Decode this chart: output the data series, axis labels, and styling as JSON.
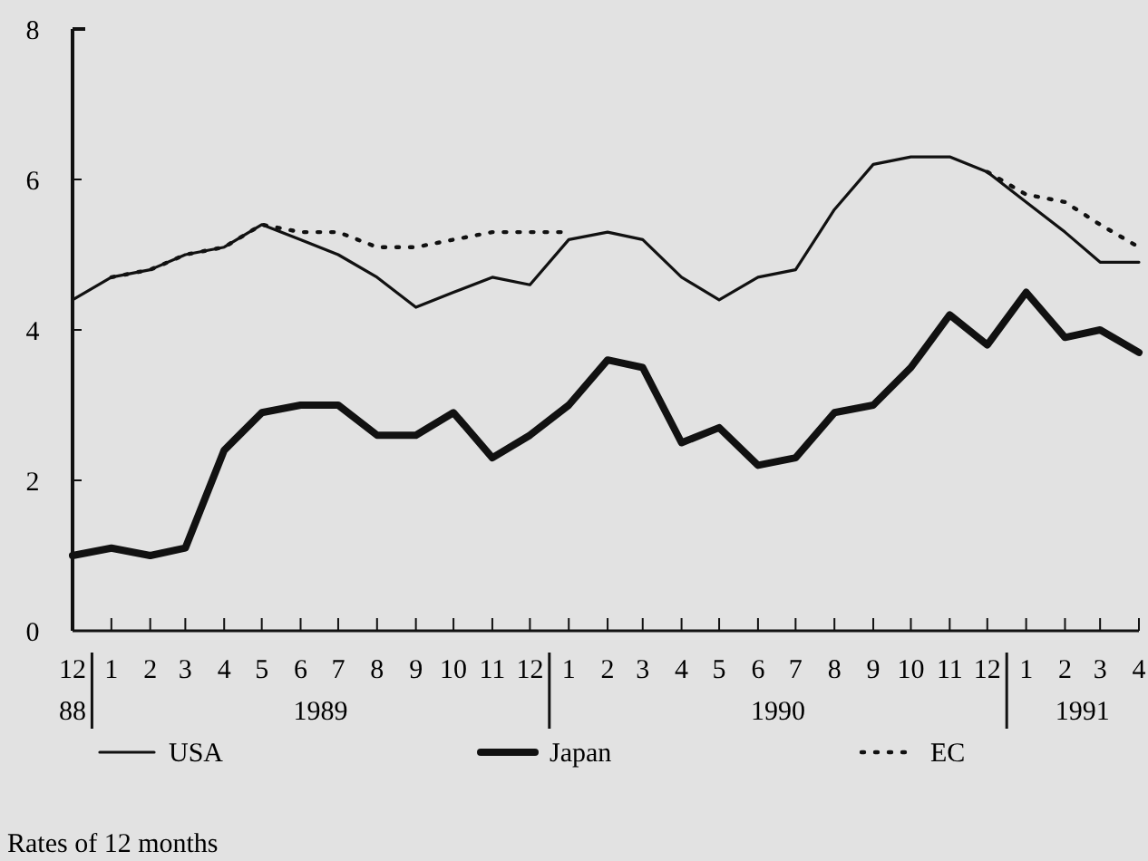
{
  "chart_data": {
    "type": "line",
    "x": [
      "1988-12",
      "1989-01",
      "1989-02",
      "1989-03",
      "1989-04",
      "1989-05",
      "1989-06",
      "1989-07",
      "1989-08",
      "1989-09",
      "1989-10",
      "1989-11",
      "1989-12",
      "1990-01",
      "1990-02",
      "1990-03",
      "1990-04",
      "1990-05",
      "1990-06",
      "1990-07",
      "1990-08",
      "1990-09",
      "1990-10",
      "1990-11",
      "1990-12",
      "1991-01",
      "1991-02",
      "1991-03",
      "1991-04"
    ],
    "series": [
      {
        "name": "USA",
        "color": "#111111",
        "line_style": "solid",
        "values": [
          4.4,
          4.7,
          4.8,
          5.0,
          5.1,
          5.4,
          5.2,
          5.0,
          4.7,
          4.3,
          4.5,
          4.7,
          4.6,
          5.2,
          5.3,
          5.2,
          4.7,
          4.4,
          4.7,
          4.8,
          5.6,
          6.2,
          6.3,
          6.3,
          6.1,
          5.7,
          5.3,
          4.9,
          4.9
        ]
      },
      {
        "name": "Japan",
        "color": "#111111",
        "line_style": "solid",
        "values": [
          1.0,
          1.1,
          1.0,
          1.1,
          2.4,
          2.9,
          3.0,
          3.0,
          2.6,
          2.6,
          2.9,
          2.3,
          2.6,
          3.0,
          3.6,
          3.5,
          2.5,
          2.7,
          2.2,
          2.3,
          2.9,
          3.0,
          3.5,
          4.2,
          3.8,
          4.5,
          3.9,
          4.0,
          3.7
        ]
      },
      {
        "name": "EC",
        "color": "#111111",
        "line_style": "dotted",
        "values": [
          null,
          4.7,
          4.8,
          5.0,
          5.1,
          5.4,
          5.3,
          5.3,
          5.1,
          5.1,
          5.2,
          5.3,
          5.3,
          5.3,
          null,
          null,
          null,
          null,
          null,
          null,
          null,
          null,
          null,
          null,
          6.1,
          5.8,
          5.7,
          5.4,
          5.1
        ]
      }
    ],
    "xlim": [
      "1988-12",
      "1991-04"
    ],
    "xticks": [
      {
        "value": "1988-12",
        "label": "12"
      },
      {
        "value": "1989-01",
        "label": "1"
      },
      {
        "value": "1989-02",
        "label": "2"
      },
      {
        "value": "1989-03",
        "label": "3"
      },
      {
        "value": "1989-04",
        "label": "4"
      },
      {
        "value": "1989-05",
        "label": "5"
      },
      {
        "value": "1989-06",
        "label": "6"
      },
      {
        "value": "1989-07",
        "label": "7"
      },
      {
        "value": "1989-08",
        "label": "8"
      },
      {
        "value": "1989-09",
        "label": "9"
      },
      {
        "value": "1989-10",
        "label": "10"
      },
      {
        "value": "1989-11",
        "label": "11"
      },
      {
        "value": "1989-12",
        "label": "12"
      },
      {
        "value": "1990-01",
        "label": "1"
      },
      {
        "value": "1990-02",
        "label": "2"
      },
      {
        "value": "1990-03",
        "label": "3"
      },
      {
        "value": "1990-04",
        "label": "4"
      },
      {
        "value": "1990-05",
        "label": "5"
      },
      {
        "value": "1990-06",
        "label": "6"
      },
      {
        "value": "1990-07",
        "label": "7"
      },
      {
        "value": "1990-08",
        "label": "8"
      },
      {
        "value": "1990-09",
        "label": "9"
      },
      {
        "value": "1990-10",
        "label": "10"
      },
      {
        "value": "1990-11",
        "label": "11"
      },
      {
        "value": "1990-12",
        "label": "12"
      },
      {
        "value": "1991-01",
        "label": "1"
      },
      {
        "value": "1991-02",
        "label": "2"
      },
      {
        "value": "1991-03",
        "label": "3"
      },
      {
        "value": "1991-04",
        "label": "4"
      }
    ],
    "ylim": [
      0,
      8
    ],
    "yticks": [
      0,
      2,
      4,
      6,
      8
    ],
    "grid": false,
    "legend": "bottom",
    "marker": "none",
    "annotations": [
      "88",
      "1989",
      "1990",
      "1991",
      "Rates of 12 months"
    ]
  }
}
